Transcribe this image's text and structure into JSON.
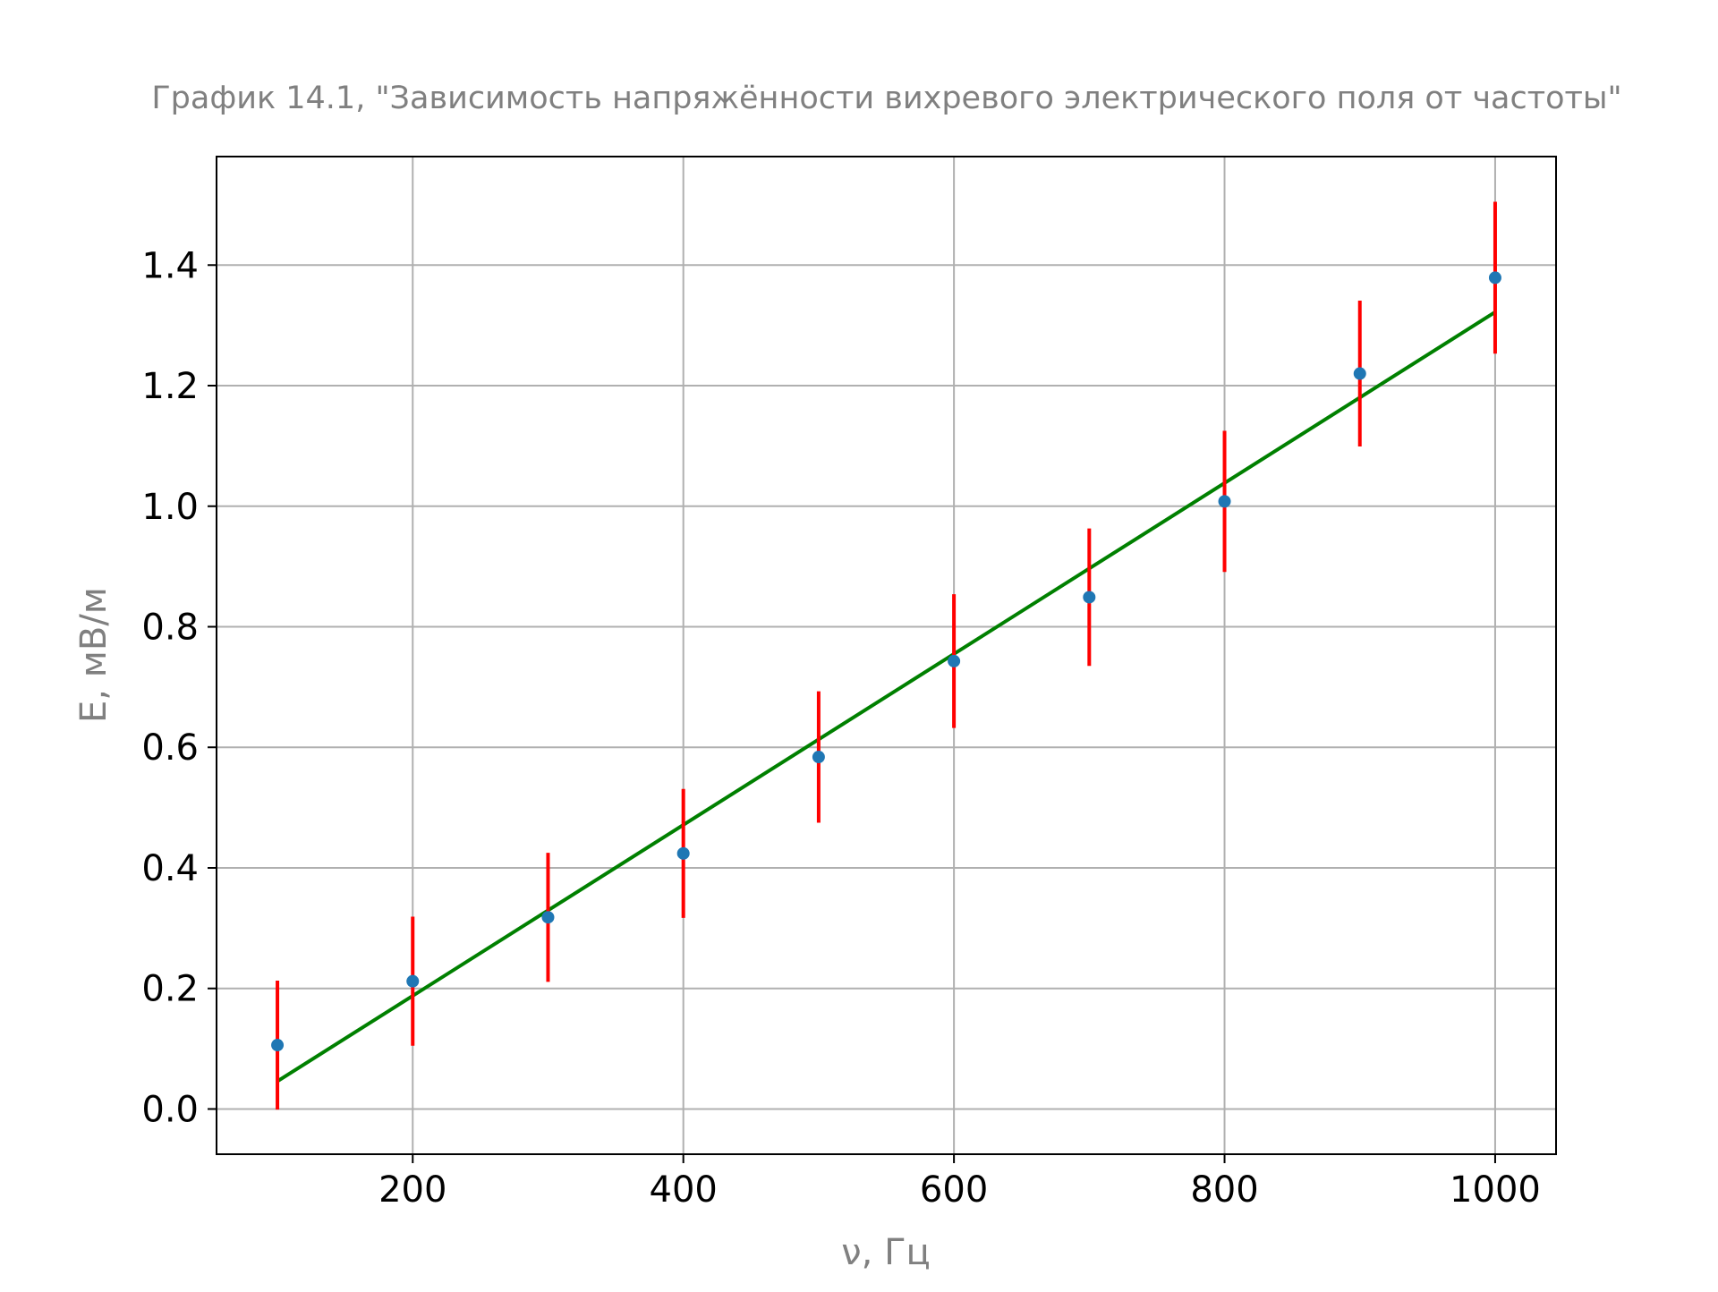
{
  "chart_data": {
    "type": "scatter",
    "title": "График 14.1, \"Зависимость напряжённости вихревого электрического поля от частоты\"",
    "xlabel": "ν, Гц",
    "ylabel": "E, мВ/м",
    "xlim": [
      55,
      1045
    ],
    "ylim": [
      -0.075,
      1.58
    ],
    "xticks": [
      200,
      400,
      600,
      800,
      1000
    ],
    "yticks": [
      0.0,
      0.2,
      0.4,
      0.6,
      0.8,
      1.0,
      1.2,
      1.4
    ],
    "grid": true,
    "legend": "none",
    "series": [
      {
        "kind": "points-with-errorbars",
        "x": [
          100,
          200,
          300,
          400,
          500,
          600,
          700,
          800,
          900,
          1000
        ],
        "y": [
          0.106,
          0.212,
          0.318,
          0.424,
          0.584,
          0.743,
          0.849,
          1.008,
          1.22,
          1.379
        ],
        "yerr": [
          0.107,
          0.107,
          0.107,
          0.107,
          0.109,
          0.111,
          0.114,
          0.117,
          0.121,
          0.126
        ],
        "color": "#1f77b4",
        "errorbar_color": "#ff0000"
      },
      {
        "kind": "fit-line",
        "x": [
          100,
          1000
        ],
        "y": [
          0.046,
          1.322
        ],
        "color": "#008000"
      }
    ],
    "colors": {
      "grid": "#b0b0b0",
      "axes": "#000000",
      "title": "#808080",
      "axis_label": "#808080"
    }
  }
}
